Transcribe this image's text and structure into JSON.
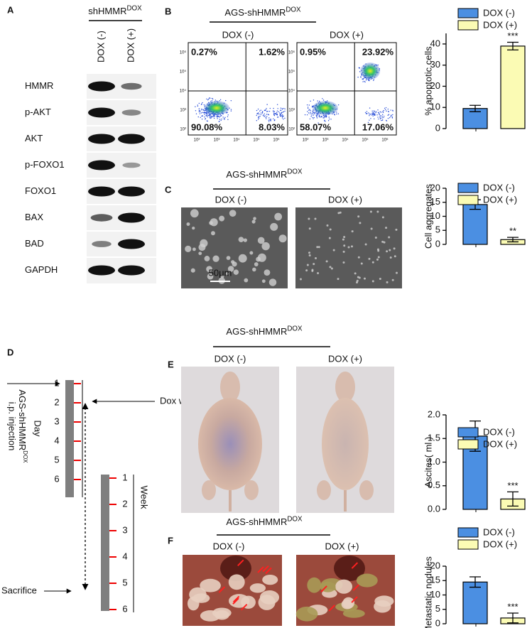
{
  "panel_a": {
    "letter": "A",
    "title": {
      "text": "shHMMR",
      "sup": "DOX"
    },
    "lanes": [
      "DOX (-)",
      "DOX (+)"
    ],
    "proteins": [
      "HMMR",
      "p-AKT",
      "AKT",
      "p-FOXO1",
      "FOXO1",
      "BAX",
      "BAD",
      "GAPDH"
    ]
  },
  "panel_b": {
    "letter": "B",
    "title": {
      "text": "AGS-shHMMR",
      "sup": "DOX"
    },
    "plots": [
      {
        "label": "DOX (-)",
        "quadrants": [
          "0.27%",
          "1.62%",
          "90.08%",
          "8.03%"
        ]
      },
      {
        "label": "DOX (+)",
        "quadrants": [
          "0.95%",
          "23.92%",
          "58.07%",
          "17.06%"
        ]
      }
    ],
    "flow_ticks": [
      "10²",
      "10³",
      "10⁴",
      "10⁵",
      "10⁶"
    ]
  },
  "panel_c": {
    "letter": "C",
    "title": {
      "text": "AGS-shHMMR",
      "sup": "DOX"
    },
    "images": [
      "DOX (-)",
      "DOX (+)"
    ],
    "scale_bar": "50μm"
  },
  "panel_d": {
    "letter": "D",
    "injection": {
      "text": "AGS-shHMMR",
      "sup": "DOX",
      "line2": "i.p. injection"
    },
    "day_label": "Day",
    "days": [
      "1",
      "2",
      "3",
      "4",
      "5",
      "6"
    ],
    "week_label": "Week",
    "weeks": [
      "1",
      "2",
      "3",
      "4",
      "5",
      "6"
    ],
    "dox_water": "Dox water",
    "sacrifice": "Sacrifice"
  },
  "panel_e": {
    "letter": "E",
    "title": {
      "text": "AGS-shHMMR",
      "sup": "DOX"
    },
    "images": [
      "DOX (-)",
      "DOX (+)"
    ]
  },
  "panel_f": {
    "letter": "F",
    "title": {
      "text": "AGS-shHMMR",
      "sup": "DOX"
    },
    "images": [
      "DOX (-)",
      "DOX (+)"
    ]
  },
  "chart_data": [
    {
      "type": "bar",
      "y_label": "% apoptotic cells",
      "ylim": [
        0,
        45
      ],
      "yticks": [
        0,
        10,
        20,
        30,
        40
      ],
      "significance": "***",
      "series": [
        {
          "name": "DOX (-)",
          "color": "#4b8fe2",
          "values": [
            9.5
          ],
          "errors": [
            1.5
          ]
        },
        {
          "name": "DOX (+)",
          "color": "#fbfbb4",
          "values": [
            39
          ],
          "errors": [
            1.8
          ]
        }
      ]
    },
    {
      "type": "bar",
      "y_label": "Cell aggregates",
      "ylim": [
        0,
        20
      ],
      "yticks": [
        0,
        5,
        10,
        15,
        20
      ],
      "significance": "**",
      "series": [
        {
          "name": "DOX (-)",
          "color": "#4b8fe2",
          "values": [
            14.2
          ],
          "errors": [
            1.7
          ]
        },
        {
          "name": "DOX (+)",
          "color": "#fbfbb4",
          "values": [
            1.7
          ],
          "errors": [
            0.8
          ]
        }
      ]
    },
    {
      "type": "bar",
      "y_label": "Ascites( ml )",
      "ylim": [
        0,
        2
      ],
      "yticks": [
        {
          "value": 0,
          "label": "0.0"
        },
        {
          "value": 0.5,
          "label": "0.5"
        },
        {
          "value": 1,
          "label": "1.0"
        },
        {
          "value": 1.5,
          "label": "1.5"
        },
        {
          "value": 2,
          "label": "2.0"
        }
      ],
      "significance": "***",
      "series": [
        {
          "name": "DOX (-)",
          "color": "#4b8fe2",
          "values": [
            1.55
          ],
          "errors": [
            0.32
          ]
        },
        {
          "name": "DOX (+)",
          "color": "#fbfbb4",
          "values": [
            0.22
          ],
          "errors": [
            0.15
          ]
        }
      ]
    },
    {
      "type": "bar",
      "y_label": "Metastatic nodules",
      "ylim": [
        0,
        20
      ],
      "yticks": [
        0,
        5,
        10,
        15,
        20
      ],
      "significance": "***",
      "series": [
        {
          "name": "DOX (-)",
          "color": "#4b8fe2",
          "values": [
            14.5
          ],
          "errors": [
            1.8
          ]
        },
        {
          "name": "DOX (+)",
          "color": "#fbfbb4",
          "values": [
            2.0
          ],
          "errors": [
            1.7
          ]
        }
      ]
    }
  ]
}
